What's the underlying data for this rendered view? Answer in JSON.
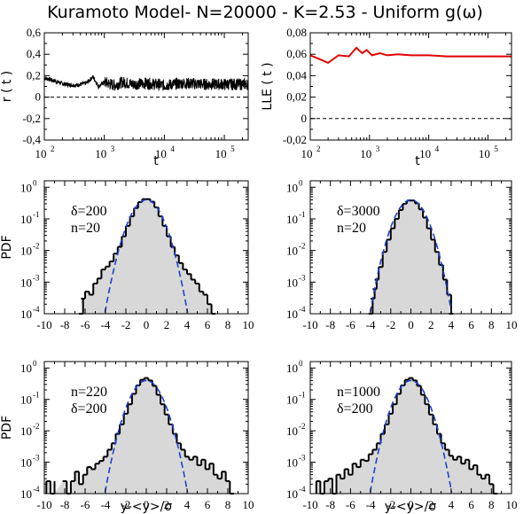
{
  "title": "Kuramoto Model- N=20000 - K=2.53 - Uniform g(ω)",
  "colors": {
    "r_line": "#000000",
    "lle_line": "#e00000",
    "gauss": "#1f3fd0",
    "fill": "#d8d8d8",
    "axis": "#000000"
  },
  "chart_data": [
    {
      "id": "rt",
      "type": "line",
      "ylabel": "r ( t )",
      "xlabel": "t",
      "xscale": "log",
      "xlim": [
        100,
        250000
      ],
      "ylim": [
        -0.4,
        0.6
      ],
      "xticks": [
        100,
        1000,
        10000,
        100000
      ],
      "yticks": [
        -0.4,
        -0.2,
        0,
        0.2,
        0.4,
        0.6
      ],
      "ytick_labels": [
        "-0,4",
        "-0,2",
        "0",
        "0,2",
        "0,4",
        "0,6"
      ],
      "reference_line": {
        "y": 0,
        "style": "dashed"
      },
      "series": [
        {
          "x": [
            100,
            150,
            220,
            330,
            500,
            650,
            800,
            1000,
            1500,
            2000,
            3000,
            5000,
            10000,
            20000,
            50000,
            100000,
            250000
          ],
          "y": [
            0.18,
            0.15,
            0.12,
            0.11,
            0.13,
            0.19,
            0.1,
            0.14,
            0.11,
            0.14,
            0.12,
            0.13,
            0.11,
            0.13,
            0.12,
            0.12,
            0.12
          ]
        }
      ]
    },
    {
      "id": "lle",
      "type": "line",
      "ylabel": "LLE ( t )",
      "xlabel": "t",
      "xscale": "log",
      "xlim": [
        100,
        250000
      ],
      "ylim": [
        -0.02,
        0.08
      ],
      "xticks": [
        100,
        1000,
        10000,
        100000
      ],
      "yticks": [
        -0.02,
        0,
        0.02,
        0.04,
        0.06,
        0.08
      ],
      "ytick_labels": [
        "-0,02",
        "0",
        "0,02",
        "0,04",
        "0,06",
        "0,08"
      ],
      "reference_line": {
        "y": 0,
        "style": "dashed"
      },
      "series": [
        {
          "x": [
            100,
            150,
            200,
            300,
            450,
            600,
            750,
            900,
            1100,
            1500,
            2000,
            3000,
            5000,
            10000,
            20000,
            50000,
            100000,
            250000
          ],
          "y": [
            0.059,
            0.055,
            0.052,
            0.059,
            0.058,
            0.066,
            0.061,
            0.064,
            0.059,
            0.061,
            0.059,
            0.06,
            0.059,
            0.059,
            0.058,
            0.058,
            0.058,
            0.058
          ]
        }
      ]
    },
    {
      "id": "pdf1",
      "type": "histogram",
      "ylabel": "PDF",
      "xlabel": "",
      "yscale": "log",
      "xlim": [
        -10,
        10
      ],
      "ylim": [
        0.0001,
        1.6
      ],
      "xticks": [
        -10,
        -8,
        -6,
        -4,
        -2,
        0,
        2,
        4,
        6,
        8,
        10
      ],
      "yticks": [
        0.0001,
        0.001,
        0.01,
        0.1,
        1
      ],
      "annotation": [
        "δ=200",
        "n=20"
      ],
      "curve": "gaussian",
      "points": [
        [
          -6.4,
          0.0001
        ],
        [
          -6.2,
          0.0003
        ],
        [
          -5.8,
          0.0005
        ],
        [
          -5.4,
          0.0004
        ],
        [
          -5.0,
          0.0009
        ],
        [
          -4.6,
          0.0013
        ],
        [
          -4.2,
          0.0025
        ],
        [
          -3.8,
          0.0031
        ],
        [
          -3.4,
          0.0045
        ],
        [
          -3.0,
          0.008
        ],
        [
          -2.6,
          0.013
        ],
        [
          -2.2,
          0.028
        ],
        [
          -1.8,
          0.06
        ],
        [
          -1.4,
          0.12
        ],
        [
          -1.0,
          0.22
        ],
        [
          -0.6,
          0.34
        ],
        [
          -0.2,
          0.42
        ],
        [
          0.2,
          0.42
        ],
        [
          0.6,
          0.35
        ],
        [
          1.0,
          0.23
        ],
        [
          1.4,
          0.12
        ],
        [
          1.8,
          0.06
        ],
        [
          2.2,
          0.028
        ],
        [
          2.6,
          0.013
        ],
        [
          3.0,
          0.007
        ],
        [
          3.4,
          0.004
        ],
        [
          3.8,
          0.0025
        ],
        [
          4.2,
          0.0018
        ],
        [
          4.6,
          0.0012
        ],
        [
          5.0,
          0.0009
        ],
        [
          5.4,
          0.0005
        ],
        [
          5.8,
          0.0004
        ],
        [
          6.2,
          0.0002
        ],
        [
          6.6,
          0.0001
        ]
      ]
    },
    {
      "id": "pdf2",
      "type": "histogram",
      "ylabel": "",
      "xlabel": "",
      "yscale": "log",
      "xlim": [
        -10,
        10
      ],
      "ylim": [
        0.0001,
        1.6
      ],
      "xticks": [
        -10,
        -8,
        -6,
        -4,
        -2,
        0,
        2,
        4,
        6,
        8,
        10
      ],
      "yticks": [
        0.0001,
        0.001,
        0.01,
        0.1,
        1
      ],
      "annotation": [
        "δ=3000",
        "n=20"
      ],
      "curve": "gaussian",
      "points": [
        [
          -4.0,
          0.0001
        ],
        [
          -3.8,
          0.0003
        ],
        [
          -3.6,
          0.0006
        ],
        [
          -3.4,
          0.0012
        ],
        [
          -3.0,
          0.003
        ],
        [
          -2.6,
          0.009
        ],
        [
          -2.2,
          0.022
        ],
        [
          -1.8,
          0.05
        ],
        [
          -1.4,
          0.1
        ],
        [
          -1.0,
          0.19
        ],
        [
          -0.6,
          0.3
        ],
        [
          -0.2,
          0.38
        ],
        [
          0.2,
          0.38
        ],
        [
          0.6,
          0.31
        ],
        [
          1.0,
          0.2
        ],
        [
          1.4,
          0.11
        ],
        [
          1.8,
          0.05
        ],
        [
          2.2,
          0.022
        ],
        [
          2.6,
          0.009
        ],
        [
          3.0,
          0.0035
        ],
        [
          3.4,
          0.0012
        ],
        [
          3.8,
          0.0004
        ],
        [
          4.0,
          0.0001
        ]
      ]
    },
    {
      "id": "pdf3",
      "type": "histogram",
      "ylabel": "PDF",
      "xlabel": "y-<y>/σ",
      "yscale": "log",
      "xlim": [
        -10,
        10
      ],
      "ylim": [
        0.0001,
        1.6
      ],
      "xticks": [
        -10,
        -8,
        -6,
        -4,
        -2,
        0,
        2,
        4,
        6,
        8,
        10
      ],
      "yticks": [
        0.0001,
        0.001,
        0.01,
        0.1,
        1
      ],
      "annotation": [
        "n=220",
        "δ=200"
      ],
      "curve": "gaussian",
      "points": [
        [
          -9.6,
          0.00025
        ],
        [
          -9.2,
          0.0001
        ],
        [
          -8.0,
          0.00025
        ],
        [
          -7.6,
          0.0001
        ],
        [
          -7.2,
          0.00025
        ],
        [
          -6.8,
          0.0005
        ],
        [
          -6.4,
          0.0002
        ],
        [
          -6.0,
          0.0004
        ],
        [
          -5.6,
          0.0007
        ],
        [
          -5.2,
          0.0006
        ],
        [
          -4.8,
          0.0009
        ],
        [
          -4.4,
          0.0011
        ],
        [
          -4.0,
          0.0015
        ],
        [
          -3.6,
          0.0025
        ],
        [
          -3.2,
          0.004
        ],
        [
          -2.8,
          0.008
        ],
        [
          -2.4,
          0.016
        ],
        [
          -2.0,
          0.035
        ],
        [
          -1.6,
          0.07
        ],
        [
          -1.2,
          0.15
        ],
        [
          -0.8,
          0.28
        ],
        [
          -0.4,
          0.42
        ],
        [
          0.0,
          0.48
        ],
        [
          0.4,
          0.4
        ],
        [
          0.8,
          0.27
        ],
        [
          1.2,
          0.14
        ],
        [
          1.6,
          0.07
        ],
        [
          2.0,
          0.033
        ],
        [
          2.4,
          0.016
        ],
        [
          2.8,
          0.008
        ],
        [
          3.2,
          0.004
        ],
        [
          3.6,
          0.0025
        ],
        [
          4.0,
          0.0015
        ],
        [
          4.4,
          0.0012
        ],
        [
          4.8,
          0.0015
        ],
        [
          5.2,
          0.0008
        ],
        [
          5.6,
          0.0012
        ],
        [
          6.0,
          0.0006
        ],
        [
          6.4,
          0.0009
        ],
        [
          6.8,
          0.0004
        ],
        [
          7.2,
          0.0003
        ],
        [
          7.6,
          0.0005
        ],
        [
          8.0,
          0.00025
        ],
        [
          8.4,
          0.0001
        ]
      ]
    },
    {
      "id": "pdf4",
      "type": "histogram",
      "ylabel": "",
      "xlabel": "y-<y>/σ",
      "yscale": "log",
      "xlim": [
        -10,
        10
      ],
      "ylim": [
        0.0001,
        1.6
      ],
      "xticks": [
        -10,
        -8,
        -6,
        -4,
        -2,
        0,
        2,
        4,
        6,
        8,
        10
      ],
      "yticks": [
        0.0001,
        0.001,
        0.01,
        0.1,
        1
      ],
      "annotation": [
        "n=1000",
        "δ=200"
      ],
      "curve": "gaussian",
      "points": [
        [
          -9.2,
          0.00025
        ],
        [
          -8.8,
          0.0001
        ],
        [
          -8.4,
          0.00025
        ],
        [
          -8.0,
          0.0003
        ],
        [
          -7.6,
          0.0001
        ],
        [
          -7.2,
          0.0004
        ],
        [
          -6.8,
          0.0003
        ],
        [
          -6.4,
          0.0006
        ],
        [
          -6.0,
          0.0004
        ],
        [
          -5.6,
          0.0009
        ],
        [
          -5.2,
          0.0007
        ],
        [
          -4.8,
          0.0012
        ],
        [
          -4.4,
          0.0011
        ],
        [
          -4.0,
          0.0018
        ],
        [
          -3.6,
          0.0025
        ],
        [
          -3.2,
          0.004
        ],
        [
          -2.8,
          0.008
        ],
        [
          -2.4,
          0.016
        ],
        [
          -2.0,
          0.035
        ],
        [
          -1.6,
          0.07
        ],
        [
          -1.2,
          0.15
        ],
        [
          -0.8,
          0.28
        ],
        [
          -0.4,
          0.42
        ],
        [
          0.0,
          0.48
        ],
        [
          0.4,
          0.4
        ],
        [
          0.8,
          0.27
        ],
        [
          1.2,
          0.14
        ],
        [
          1.6,
          0.07
        ],
        [
          2.0,
          0.033
        ],
        [
          2.4,
          0.016
        ],
        [
          2.8,
          0.008
        ],
        [
          3.2,
          0.004
        ],
        [
          3.6,
          0.0025
        ],
        [
          4.0,
          0.0016
        ],
        [
          4.4,
          0.0012
        ],
        [
          4.8,
          0.0015
        ],
        [
          5.2,
          0.0009
        ],
        [
          5.6,
          0.0012
        ],
        [
          6.0,
          0.0006
        ],
        [
          6.4,
          0.0008
        ],
        [
          6.8,
          0.0004
        ],
        [
          7.2,
          0.0003
        ],
        [
          7.6,
          0.0004
        ],
        [
          8.0,
          0.0002
        ],
        [
          8.4,
          0.0001
        ]
      ]
    }
  ]
}
